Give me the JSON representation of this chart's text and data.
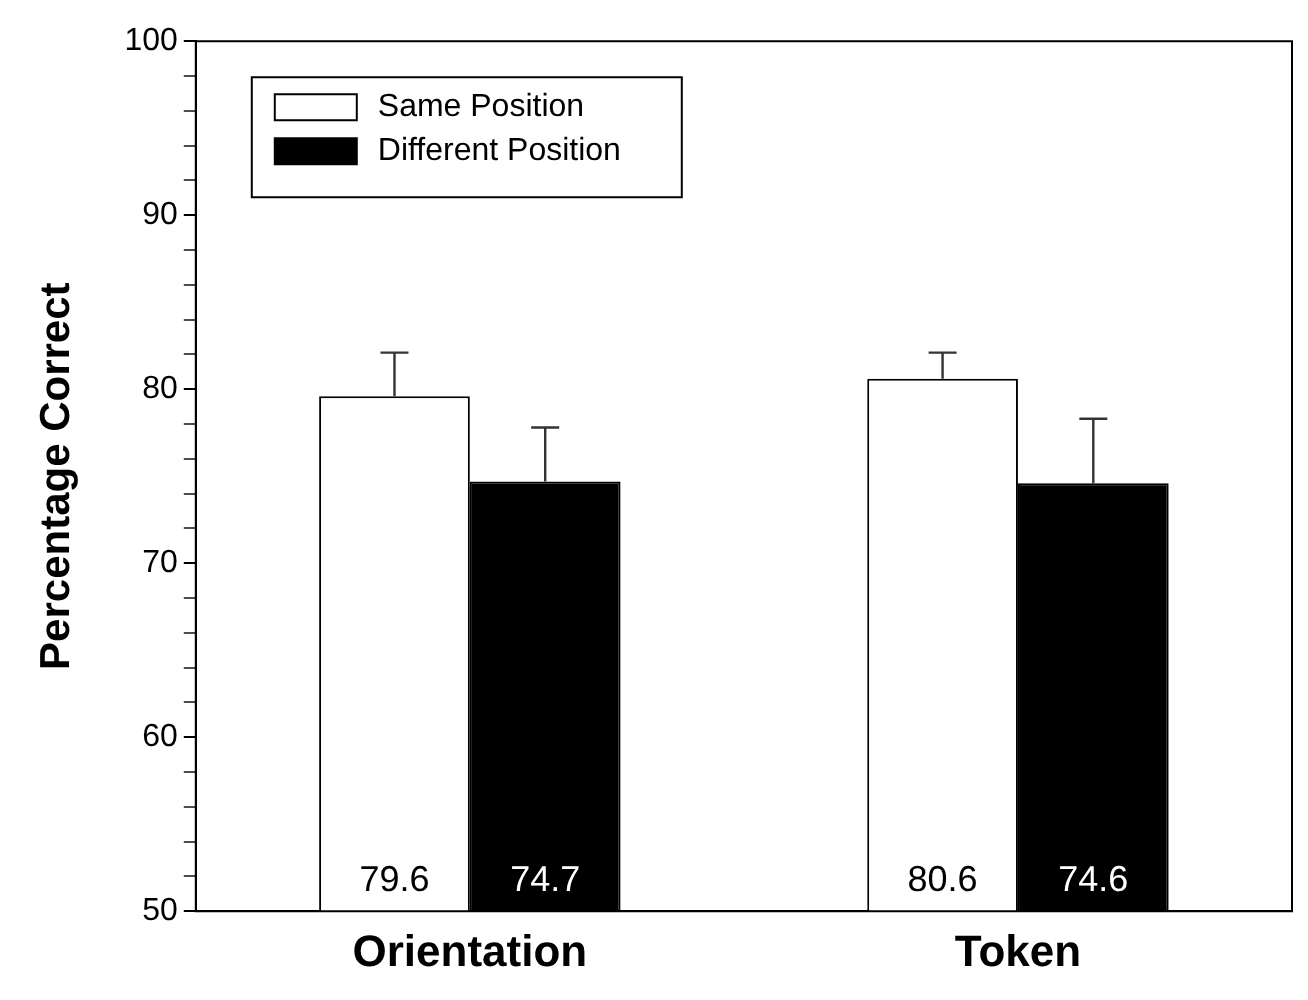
{
  "chart_data": {
    "type": "bar",
    "ylabel": "Percentage Correct",
    "categories": [
      "Orientation",
      "Token"
    ],
    "series": [
      {
        "name": "Same Position",
        "color": "#ffffff",
        "values": [
          79.6,
          80.6
        ],
        "errors": [
          2.5,
          1.5
        ]
      },
      {
        "name": "Different Position",
        "color": "#000000",
        "values": [
          74.7,
          74.6
        ],
        "errors": [
          3.1,
          3.7
        ]
      }
    ],
    "ylim": [
      50,
      100
    ],
    "yticks": [
      50,
      {
        "value": 52,
        "label": null
      },
      {
        "value": 54,
        "label": null
      },
      {
        "value": 56,
        "label": null
      },
      {
        "value": 58,
        "label": null
      },
      60,
      {
        "value": 62,
        "label": null
      },
      {
        "value": 64,
        "label": null
      },
      {
        "value": 66,
        "label": null
      },
      {
        "value": 68,
        "label": null
      },
      70,
      {
        "value": 72,
        "label": null
      },
      {
        "value": 74,
        "label": null
      },
      {
        "value": 76,
        "label": null
      },
      {
        "value": 78,
        "label": null
      },
      80,
      {
        "value": 82,
        "label": null
      },
      {
        "value": 84,
        "label": null
      },
      {
        "value": 86,
        "label": null
      },
      {
        "value": 88,
        "label": null
      },
      90,
      {
        "value": 92,
        "label": null
      },
      {
        "value": 94,
        "label": null
      },
      {
        "value": 96,
        "label": null
      },
      {
        "value": 98,
        "label": null
      },
      100
    ],
    "data_labels": true,
    "legend": "top left",
    "grid": false
  }
}
